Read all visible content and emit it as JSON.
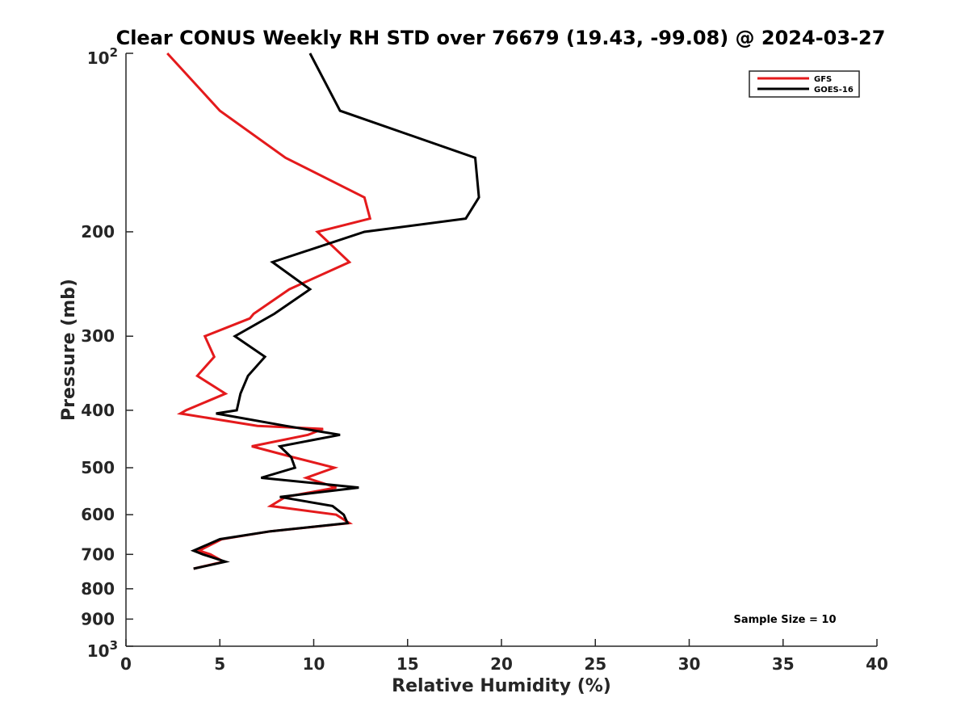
{
  "chart_data": {
    "type": "line",
    "title": "Clear CONUS Weekly RH STD over 76679 (19.43, -99.08) @ 2024-03-27",
    "xlabel": "Relative Humidity (%)",
    "ylabel": "Pressure (mb)",
    "xlim": [
      0,
      40
    ],
    "ylim": [
      100,
      1000
    ],
    "y_scale": "log",
    "y_reversed": true,
    "x_ticks": [
      "0",
      "5",
      "10",
      "15",
      "20",
      "25",
      "30",
      "35",
      "40"
    ],
    "y_ticks": [
      {
        "value": 100,
        "label": "10",
        "exp": "2"
      },
      {
        "value": 200,
        "label": "200",
        "exp": ""
      },
      {
        "value": 300,
        "label": "300",
        "exp": ""
      },
      {
        "value": 400,
        "label": "400",
        "exp": ""
      },
      {
        "value": 500,
        "label": "500",
        "exp": ""
      },
      {
        "value": 600,
        "label": "600",
        "exp": ""
      },
      {
        "value": 700,
        "label": "700",
        "exp": ""
      },
      {
        "value": 800,
        "label": "800",
        "exp": ""
      },
      {
        "value": 900,
        "label": "900",
        "exp": ""
      },
      {
        "value": 1000,
        "label": "10",
        "exp": "3"
      }
    ],
    "grid": false,
    "legend_position": "top-right",
    "annotation": "Sample Size = 10",
    "series": [
      {
        "name": "GFS",
        "color": "#e41a1c",
        "points": [
          [
            2.2,
            100
          ],
          [
            5.0,
            125
          ],
          [
            8.5,
            150
          ],
          [
            12.7,
            175
          ],
          [
            13.0,
            190
          ],
          [
            10.2,
            200
          ],
          [
            11.9,
            225
          ],
          [
            8.7,
            250
          ],
          [
            6.8,
            275
          ],
          [
            6.6,
            280
          ],
          [
            4.2,
            300
          ],
          [
            4.7,
            325
          ],
          [
            3.8,
            350
          ],
          [
            5.3,
            375
          ],
          [
            3.2,
            400
          ],
          [
            2.9,
            405
          ],
          [
            7.0,
            425
          ],
          [
            10.5,
            430
          ],
          [
            9.7,
            440
          ],
          [
            6.7,
            460
          ],
          [
            8.9,
            480
          ],
          [
            11.1,
            500
          ],
          [
            9.6,
            520
          ],
          [
            11.2,
            540
          ],
          [
            8.5,
            560
          ],
          [
            7.7,
            580
          ],
          [
            11.2,
            600
          ],
          [
            11.9,
            620
          ],
          [
            7.7,
            640
          ],
          [
            5.1,
            660
          ],
          [
            3.9,
            690
          ],
          [
            4.5,
            700
          ],
          [
            5.2,
            720
          ],
          [
            3.6,
            740
          ]
        ]
      },
      {
        "name": "GOES-16",
        "color": "#000000",
        "points": [
          [
            9.8,
            100
          ],
          [
            11.4,
            125
          ],
          [
            18.6,
            150
          ],
          [
            18.8,
            175
          ],
          [
            18.1,
            190
          ],
          [
            12.7,
            200
          ],
          [
            7.8,
            225
          ],
          [
            9.8,
            250
          ],
          [
            7.9,
            275
          ],
          [
            5.8,
            300
          ],
          [
            7.4,
            325
          ],
          [
            6.5,
            350
          ],
          [
            6.1,
            375
          ],
          [
            5.9,
            400
          ],
          [
            4.8,
            405
          ],
          [
            8.5,
            425
          ],
          [
            11.4,
            440
          ],
          [
            8.2,
            460
          ],
          [
            8.8,
            480
          ],
          [
            9.0,
            500
          ],
          [
            7.2,
            520
          ],
          [
            12.4,
            540
          ],
          [
            8.2,
            560
          ],
          [
            11.0,
            580
          ],
          [
            11.6,
            600
          ],
          [
            11.8,
            620
          ],
          [
            7.7,
            640
          ],
          [
            5.0,
            660
          ],
          [
            3.6,
            690
          ],
          [
            4.1,
            700
          ],
          [
            5.3,
            720
          ],
          [
            3.6,
            740
          ]
        ]
      }
    ]
  }
}
